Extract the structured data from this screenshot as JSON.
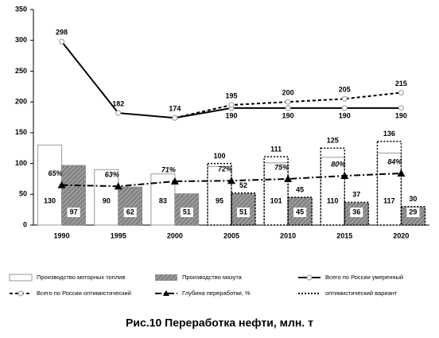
{
  "chart_data": {
    "type": "bar",
    "title": "Рис.10 Переработка нефти, млн. т",
    "categories": [
      "1990",
      "1995",
      "2000",
      "2005",
      "2010",
      "2015",
      "2020"
    ],
    "ylim": [
      0,
      350
    ],
    "yticks": [
      0,
      50,
      100,
      150,
      200,
      250,
      300,
      350
    ],
    "series": [
      {
        "name": "Производство моторных топлив",
        "color": "#ffffff",
        "values": [
          130,
          90,
          83,
          95,
          101,
          110,
          117
        ]
      },
      {
        "name": "Производство мазута",
        "color": "#8c8c8c",
        "values": [
          97,
          62,
          51,
          51,
          45,
          36,
          29
        ]
      },
      {
        "name": "Всего по России умеренный",
        "color": "#000000",
        "values": [
          298,
          182,
          174,
          190,
          190,
          190,
          190
        ]
      },
      {
        "name": "Всего по России оптимистический",
        "color": "#000000",
        "values": [
          null,
          null,
          174,
          195,
          200,
          205,
          215
        ]
      },
      {
        "name": "Глубина переработки, %",
        "color": "#000000",
        "values": [
          65,
          63,
          71,
          72,
          75,
          80,
          84
        ],
        "value_labels": [
          "65%",
          "63%",
          "71%",
          "72%",
          "75%",
          "80%",
          "84%"
        ]
      },
      {
        "name": "оптимистический вариант",
        "color": "#000000",
        "values": [
          null,
          null,
          null,
          100,
          111,
          125,
          136
        ],
        "values_mazut": [
          null,
          null,
          null,
          52,
          45,
          37,
          30
        ]
      }
    ]
  }
}
